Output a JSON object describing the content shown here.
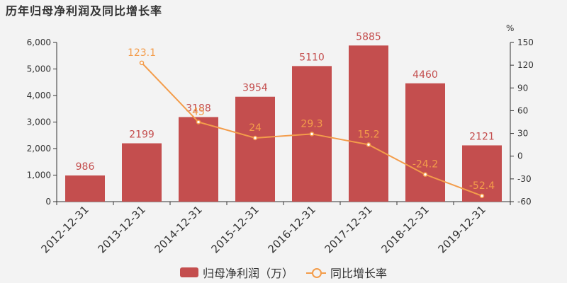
{
  "chart_data": {
    "type": "bar",
    "title": "历年归母净利润及同比增长率",
    "categories": [
      "2012-12-31",
      "2013-12-31",
      "2014-12-31",
      "2015-12-31",
      "2016-12-31",
      "2017-12-31",
      "2018-12-31",
      "2019-12-31"
    ],
    "series": [
      {
        "name": "归母净利润（万）",
        "type": "bar",
        "axis": "left",
        "color": "#c44e4e",
        "values": [
          986,
          2199,
          3188,
          3954,
          5110,
          5885,
          4460,
          2121
        ],
        "labels": [
          "986",
          "2199",
          "3188",
          "3954",
          "5110",
          "5885",
          "4460",
          "2121"
        ]
      },
      {
        "name": "同比增长率",
        "type": "line",
        "axis": "right",
        "color": "#f39c4a",
        "values": [
          null,
          123.1,
          45,
          24,
          29.3,
          15.2,
          -24.2,
          -52.4
        ],
        "labels": [
          "",
          "123.1",
          "45",
          "24",
          "29.3",
          "15.2",
          "-24.2",
          "-52.4"
        ]
      }
    ],
    "y_left": {
      "ylim": [
        0,
        6000
      ],
      "ticks": [
        0,
        1000,
        2000,
        3000,
        4000,
        5000,
        6000
      ],
      "tick_labels": [
        "0",
        "1,000",
        "2,000",
        "3,000",
        "4,000",
        "5,000",
        "6,000"
      ]
    },
    "y_right": {
      "label": "%",
      "ylim": [
        -60,
        150
      ],
      "ticks": [
        -60,
        -30,
        0,
        30,
        60,
        90,
        120,
        150
      ],
      "tick_labels": [
        "-60",
        "-30",
        "0",
        "30",
        "60",
        "90",
        "120",
        "150"
      ]
    },
    "grid": false,
    "legend": "bottom-center"
  }
}
